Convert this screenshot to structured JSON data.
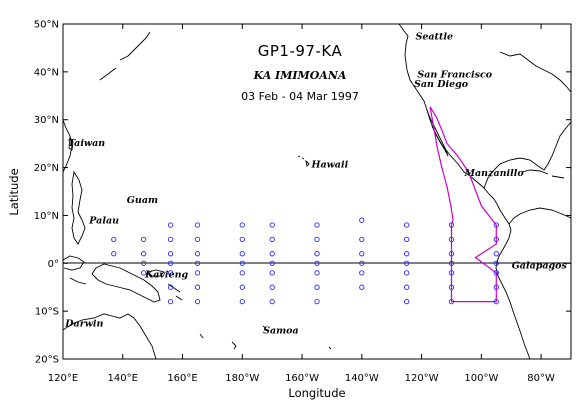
{
  "title": {
    "cruise_id": "GP1-97-KA",
    "ship": "KA IMIMOANA",
    "dates": "03 Feb - 04 Mar 1997"
  },
  "axes": {
    "xlabel": "Longitude",
    "ylabel": "Latitude",
    "x_ticks": [
      {
        "lon": 120,
        "label": "120°E"
      },
      {
        "lon": 140,
        "label": "140°E"
      },
      {
        "lon": 160,
        "label": "160°E"
      },
      {
        "lon": 180,
        "label": "180°W"
      },
      {
        "lon": 200,
        "label": "160°W"
      },
      {
        "lon": 220,
        "label": "140°W"
      },
      {
        "lon": 240,
        "label": "120°W"
      },
      {
        "lon": 260,
        "label": "100°W"
      },
      {
        "lon": 280,
        "label": "80°W"
      }
    ],
    "y_ticks": [
      {
        "lat": 50,
        "label": "50°N"
      },
      {
        "lat": 40,
        "label": "40°N"
      },
      {
        "lat": 30,
        "label": "30°N"
      },
      {
        "lat": 20,
        "label": "20°N"
      },
      {
        "lat": 10,
        "label": "10°N"
      },
      {
        "lat": 0,
        "label": "0°"
      },
      {
        "lat": -10,
        "label": "10°S"
      },
      {
        "lat": -20,
        "label": "20°S"
      }
    ],
    "lon_range": [
      120,
      290
    ],
    "lat_range": [
      -20,
      50
    ]
  },
  "places": [
    {
      "name": "Seattle",
      "lon": 237.3,
      "lat": 47.6
    },
    {
      "name": "San Francisco",
      "lon": 237.6,
      "lat": 37.8
    },
    {
      "name": "San Diego",
      "lon": 242.8,
      "lat": 32.7
    },
    {
      "name": "Taiwan",
      "lon": 121.0,
      "lat": 23.7
    },
    {
      "name": "Hawaii",
      "lon": 204.5,
      "lat": 19.6
    },
    {
      "name": "Manzanillo",
      "lon": 255.7,
      "lat": 19.1
    },
    {
      "name": "Guam",
      "lon": 144.7,
      "lat": 13.4
    },
    {
      "name": "Palau",
      "lon": 134.5,
      "lat": 7.5
    },
    {
      "name": "Galapagos",
      "lon": 271.5,
      "lat": -0.5
    },
    {
      "name": "Kavieng",
      "lon": 150.8,
      "lat": -2.6
    },
    {
      "name": "Darwin",
      "lon": 130.8,
      "lat": -12.4
    },
    {
      "name": "Samoa",
      "lon": 188.3,
      "lat": -13.8
    }
  ],
  "colors": {
    "station": "#2a2aff",
    "track": "#cc00cc",
    "coast": "#000000"
  },
  "stations": [
    {
      "lon": 137,
      "lat": 5
    },
    {
      "lon": 137,
      "lat": 2
    },
    {
      "lon": 147,
      "lat": 5
    },
    {
      "lon": 147,
      "lat": 2
    },
    {
      "lon": 147,
      "lat": 0
    },
    {
      "lon": 147,
      "lat": -2
    },
    {
      "lon": 156,
      "lat": 8
    },
    {
      "lon": 156,
      "lat": 5
    },
    {
      "lon": 156,
      "lat": 2
    },
    {
      "lon": 156,
      "lat": 0
    },
    {
      "lon": 156,
      "lat": -2
    },
    {
      "lon": 156,
      "lat": -5
    },
    {
      "lon": 156,
      "lat": -8
    },
    {
      "lon": 165,
      "lat": 8
    },
    {
      "lon": 165,
      "lat": 5
    },
    {
      "lon": 165,
      "lat": 2
    },
    {
      "lon": 165,
      "lat": 0
    },
    {
      "lon": 165,
      "lat": -2
    },
    {
      "lon": 165,
      "lat": -5
    },
    {
      "lon": 165,
      "lat": -8
    },
    {
      "lon": 180,
      "lat": 8
    },
    {
      "lon": 180,
      "lat": 5
    },
    {
      "lon": 180,
      "lat": 2
    },
    {
      "lon": 180,
      "lat": 0
    },
    {
      "lon": 180,
      "lat": -2
    },
    {
      "lon": 180,
      "lat": -5
    },
    {
      "lon": 180,
      "lat": -8
    },
    {
      "lon": 190,
      "lat": 8
    },
    {
      "lon": 190,
      "lat": 5
    },
    {
      "lon": 190,
      "lat": 2
    },
    {
      "lon": 190,
      "lat": 0
    },
    {
      "lon": 190,
      "lat": -2
    },
    {
      "lon": 190,
      "lat": -5
    },
    {
      "lon": 190,
      "lat": -8
    },
    {
      "lon": 205,
      "lat": 8
    },
    {
      "lon": 205,
      "lat": 5
    },
    {
      "lon": 205,
      "lat": 2
    },
    {
      "lon": 205,
      "lat": 0
    },
    {
      "lon": 205,
      "lat": -2
    },
    {
      "lon": 205,
      "lat": -5
    },
    {
      "lon": 205,
      "lat": -8
    },
    {
      "lon": 220,
      "lat": 9
    },
    {
      "lon": 220,
      "lat": 5
    },
    {
      "lon": 220,
      "lat": 2
    },
    {
      "lon": 220,
      "lat": 0
    },
    {
      "lon": 220,
      "lat": -2
    },
    {
      "lon": 220,
      "lat": -5
    },
    {
      "lon": 235,
      "lat": 8
    },
    {
      "lon": 235,
      "lat": 5
    },
    {
      "lon": 235,
      "lat": 2
    },
    {
      "lon": 235,
      "lat": 0
    },
    {
      "lon": 235,
      "lat": -2
    },
    {
      "lon": 235,
      "lat": -5
    },
    {
      "lon": 235,
      "lat": -8
    },
    {
      "lon": 250,
      "lat": 8
    },
    {
      "lon": 250,
      "lat": 5
    },
    {
      "lon": 250,
      "lat": 2
    },
    {
      "lon": 250,
      "lat": 0
    },
    {
      "lon": 250,
      "lat": -2
    },
    {
      "lon": 250,
      "lat": -5
    },
    {
      "lon": 250,
      "lat": -8
    },
    {
      "lon": 265,
      "lat": 8
    },
    {
      "lon": 265,
      "lat": 5
    },
    {
      "lon": 265,
      "lat": 2
    },
    {
      "lon": 265,
      "lat": 0
    },
    {
      "lon": 265,
      "lat": -2
    },
    {
      "lon": 265,
      "lat": -5
    },
    {
      "lon": 265,
      "lat": -8
    }
  ],
  "ship_track": [
    [
      242.8,
      32.7
    ],
    [
      244.2,
      28.0
    ],
    [
      245.3,
      24.0
    ],
    [
      246.8,
      20.0
    ],
    [
      248.5,
      16.0
    ],
    [
      249.8,
      12.0
    ],
    [
      250.5,
      9.0
    ],
    [
      250.0,
      8.0
    ],
    [
      250.0,
      -8.0
    ],
    [
      265.0,
      -8.0
    ],
    [
      265.0,
      -2.0
    ],
    [
      258.0,
      1.2
    ],
    [
      265.0,
      4.0
    ],
    [
      265.0,
      8.0
    ],
    [
      260.0,
      12.0
    ],
    [
      255.7,
      19.1
    ],
    [
      252.0,
      22.5
    ],
    [
      248.5,
      25.0
    ],
    [
      247.0,
      27.5
    ],
    [
      245.0,
      30.5
    ],
    [
      242.8,
      32.7
    ]
  ]
}
